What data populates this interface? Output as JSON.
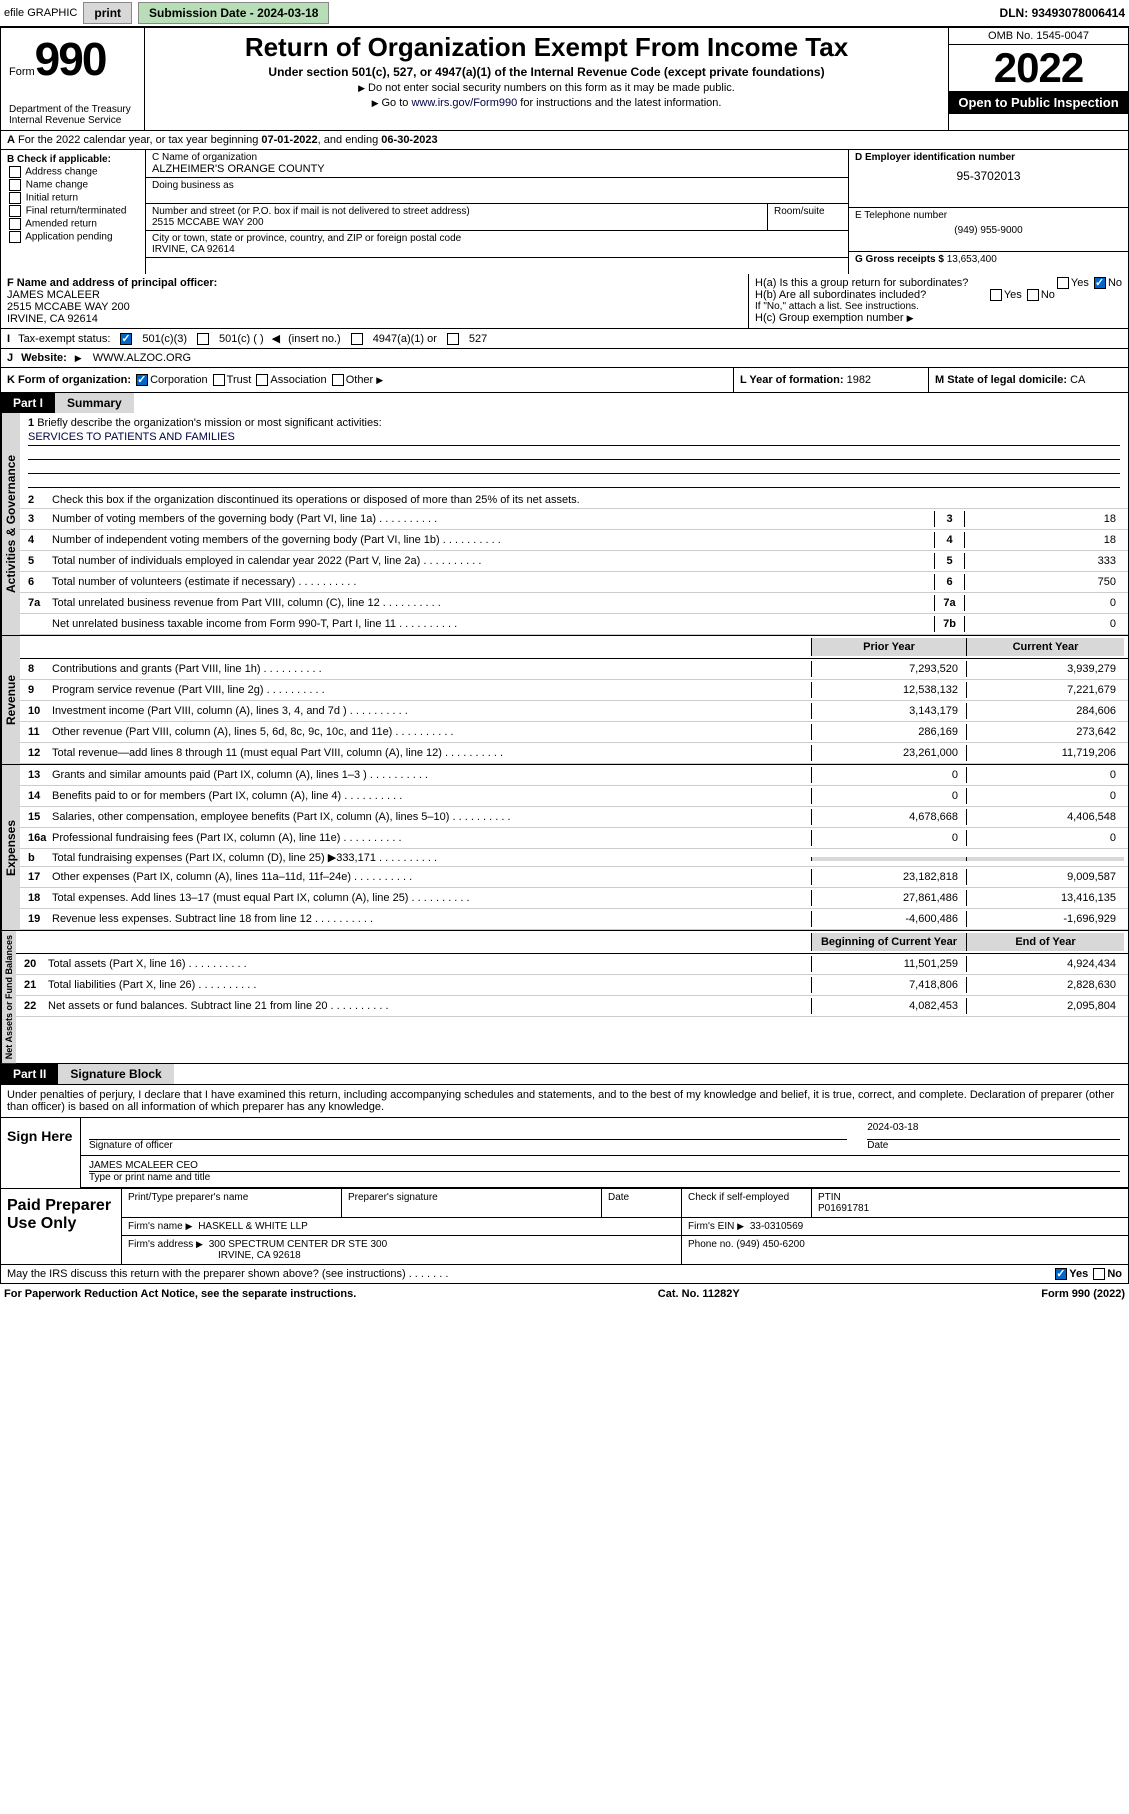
{
  "topbar": {
    "efile": "efile GRAPHIC",
    "print": "print",
    "sub_label": "Submission Date -",
    "sub_date": "2024-03-18",
    "dln_label": "DLN:",
    "dln": "93493078006414"
  },
  "header": {
    "form": "Form",
    "num": "990",
    "title": "Return of Organization Exempt From Income Tax",
    "subtitle": "Under section 501(c), 527, or 4947(a)(1) of the Internal Revenue Code (except private foundations)",
    "note1": "Do not enter social security numbers on this form as it may be made public.",
    "note2_pre": "Go to ",
    "note2_link": "www.irs.gov/Form990",
    "note2_post": " for instructions and the latest information.",
    "omb": "OMB No. 1545-0047",
    "year": "2022",
    "open": "Open to Public Inspection",
    "dept": "Department of the Treasury Internal Revenue Service"
  },
  "rowA": {
    "text": "For the 2022 calendar year, or tax year beginning ",
    "begin": "07-01-2022",
    "mid": ", and ending ",
    "end": "06-30-2023"
  },
  "boxB": {
    "label": "B Check if applicable:",
    "opts": [
      "Address change",
      "Name change",
      "Initial return",
      "Final return/terminated",
      "Amended return",
      "Application pending"
    ]
  },
  "boxC": {
    "name_label": "C Name of organization",
    "name": "ALZHEIMER'S ORANGE COUNTY",
    "dba_label": "Doing business as",
    "addr_label": "Number and street (or P.O. box if mail is not delivered to street address)",
    "addr": "2515 MCCABE WAY 200",
    "room_label": "Room/suite",
    "city_label": "City or town, state or province, country, and ZIP or foreign postal code",
    "city": "IRVINE, CA  92614"
  },
  "boxD": {
    "label": "D Employer identification number",
    "val": "95-3702013"
  },
  "boxE": {
    "label": "E Telephone number",
    "val": "(949) 955-9000"
  },
  "boxG": {
    "label": "G Gross receipts $",
    "val": "13,653,400"
  },
  "boxF": {
    "label": "F Name and address of principal officer:",
    "name": "JAMES MCALEER",
    "addr": "2515 MCCABE WAY 200",
    "city": "IRVINE, CA  92614"
  },
  "boxH": {
    "a": "H(a)  Is this a group return for subordinates?",
    "b": "H(b)  Are all subordinates included?",
    "b_note": "If \"No,\" attach a list. See instructions.",
    "c": "H(c)  Group exemption number",
    "yes": "Yes",
    "no": "No"
  },
  "rowI": {
    "label": "Tax-exempt status:",
    "o1": "501(c)(3)",
    "o2": "501(c) (  )",
    "o2b": "(insert no.)",
    "o3": "4947(a)(1) or",
    "o4": "527"
  },
  "rowJ": {
    "label": "Website:",
    "val": "WWW.ALZOC.ORG"
  },
  "rowK": {
    "label": "K Form of organization:",
    "opts": [
      "Corporation",
      "Trust",
      "Association",
      "Other"
    ]
  },
  "boxL": {
    "label": "L Year of formation:",
    "val": "1982"
  },
  "boxM": {
    "label": "M State of legal domicile:",
    "val": "CA"
  },
  "part1": {
    "hdr": "Part I",
    "title": "Summary",
    "l1": "Briefly describe the organization's mission or most significant activities:",
    "l1_val": "SERVICES TO PATIENTS AND FAMILIES",
    "l2": "Check this box        if the organization discontinued its operations or disposed of more than 25% of its net assets.",
    "lines_gov": [
      {
        "n": "3",
        "t": "Number of voting members of the governing body (Part VI, line 1a)",
        "box": "3",
        "v": "18"
      },
      {
        "n": "4",
        "t": "Number of independent voting members of the governing body (Part VI, line 1b)",
        "box": "4",
        "v": "18"
      },
      {
        "n": "5",
        "t": "Total number of individuals employed in calendar year 2022 (Part V, line 2a)",
        "box": "5",
        "v": "333"
      },
      {
        "n": "6",
        "t": "Total number of volunteers (estimate if necessary)",
        "box": "6",
        "v": "750"
      },
      {
        "n": "7a",
        "t": "Total unrelated business revenue from Part VIII, column (C), line 12",
        "box": "7a",
        "v": "0"
      },
      {
        "n": "",
        "t": "Net unrelated business taxable income from Form 990-T, Part I, line 11",
        "box": "7b",
        "v": "0"
      }
    ],
    "prior_hdr": "Prior Year",
    "curr_hdr": "Current Year",
    "lines_rev": [
      {
        "n": "8",
        "t": "Contributions and grants (Part VIII, line 1h)",
        "p": "7,293,520",
        "c": "3,939,279"
      },
      {
        "n": "9",
        "t": "Program service revenue (Part VIII, line 2g)",
        "p": "12,538,132",
        "c": "7,221,679"
      },
      {
        "n": "10",
        "t": "Investment income (Part VIII, column (A), lines 3, 4, and 7d )",
        "p": "3,143,179",
        "c": "284,606"
      },
      {
        "n": "11",
        "t": "Other revenue (Part VIII, column (A), lines 5, 6d, 8c, 9c, 10c, and 11e)",
        "p": "286,169",
        "c": "273,642"
      },
      {
        "n": "12",
        "t": "Total revenue—add lines 8 through 11 (must equal Part VIII, column (A), line 12)",
        "p": "23,261,000",
        "c": "11,719,206"
      }
    ],
    "lines_exp": [
      {
        "n": "13",
        "t": "Grants and similar amounts paid (Part IX, column (A), lines 1–3 )",
        "p": "0",
        "c": "0"
      },
      {
        "n": "14",
        "t": "Benefits paid to or for members (Part IX, column (A), line 4)",
        "p": "0",
        "c": "0"
      },
      {
        "n": "15",
        "t": "Salaries, other compensation, employee benefits (Part IX, column (A), lines 5–10)",
        "p": "4,678,668",
        "c": "4,406,548"
      },
      {
        "n": "16a",
        "t": "Professional fundraising fees (Part IX, column (A), line 11e)",
        "p": "0",
        "c": "0"
      },
      {
        "n": "b",
        "t": "Total fundraising expenses (Part IX, column (D), line 25) ▶333,171",
        "p": "",
        "c": "",
        "grey": true
      },
      {
        "n": "17",
        "t": "Other expenses (Part IX, column (A), lines 11a–11d, 11f–24e)",
        "p": "23,182,818",
        "c": "9,009,587"
      },
      {
        "n": "18",
        "t": "Total expenses. Add lines 13–17 (must equal Part IX, column (A), line 25)",
        "p": "27,861,486",
        "c": "13,416,135"
      },
      {
        "n": "19",
        "t": "Revenue less expenses. Subtract line 18 from line 12",
        "p": "-4,600,486",
        "c": "-1,696,929"
      }
    ],
    "beg_hdr": "Beginning of Current Year",
    "end_hdr": "End of Year",
    "lines_net": [
      {
        "n": "20",
        "t": "Total assets (Part X, line 16)",
        "p": "11,501,259",
        "c": "4,924,434"
      },
      {
        "n": "21",
        "t": "Total liabilities (Part X, line 26)",
        "p": "7,418,806",
        "c": "2,828,630"
      },
      {
        "n": "22",
        "t": "Net assets or fund balances. Subtract line 21 from line 20",
        "p": "4,082,453",
        "c": "2,095,804"
      }
    ],
    "side_gov": "Activities & Governance",
    "side_rev": "Revenue",
    "side_exp": "Expenses",
    "side_net": "Net Assets or Fund Balances"
  },
  "part2": {
    "hdr": "Part II",
    "title": "Signature Block",
    "decl": "Under penalties of perjury, I declare that I have examined this return, including accompanying schedules and statements, and to the best of my knowledge and belief, it is true, correct, and complete. Declaration of preparer (other than officer) is based on all information of which preparer has any knowledge.",
    "sign_here": "Sign Here",
    "sig_officer": "Signature of officer",
    "date_label": "Date",
    "sig_date": "2024-03-18",
    "name_title": "JAMES MCALEER CEO",
    "name_title_label": "Type or print name and title",
    "paid": "Paid Preparer Use Only",
    "prep_name_label": "Print/Type preparer's name",
    "prep_sig_label": "Preparer's signature",
    "check_if": "Check        if self-employed",
    "ptin_label": "PTIN",
    "ptin": "P01691781",
    "firm_name_label": "Firm's name",
    "firm_name": "HASKELL & WHITE LLP",
    "firm_ein_label": "Firm's EIN",
    "firm_ein": "33-0310569",
    "firm_addr_label": "Firm's address",
    "firm_addr": "300 SPECTRUM CENTER DR STE 300",
    "firm_city": "IRVINE, CA  92618",
    "phone_label": "Phone no.",
    "phone": "(949) 450-6200",
    "discuss": "May the IRS discuss this return with the preparer shown above? (see instructions)",
    "yes": "Yes",
    "no": "No"
  },
  "footer": {
    "left": "For Paperwork Reduction Act Notice, see the separate instructions.",
    "mid": "Cat. No. 11282Y",
    "right": "Form 990 (2022)"
  }
}
